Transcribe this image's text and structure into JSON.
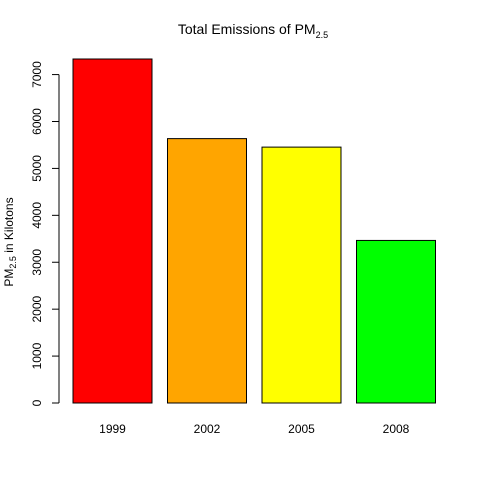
{
  "chart_data": {
    "type": "bar",
    "title": {
      "main": "Total Emissions of PM",
      "sub": "2.5"
    },
    "ylabel": {
      "main": "PM",
      "sub": "2.5",
      "rest": " in Kilotons"
    },
    "categories": [
      "1999",
      "2002",
      "2005",
      "2008"
    ],
    "values": [
      7332,
      5635,
      5454,
      3465
    ],
    "colors": [
      "#FF0000",
      "#FFA500",
      "#FFFF00",
      "#00FF00"
    ],
    "yticks": [
      "0",
      "1000",
      "2000",
      "3000",
      "4000",
      "5000",
      "6000",
      "7000"
    ],
    "ylim": [
      0,
      7332
    ],
    "grid": false,
    "legend": "none"
  }
}
